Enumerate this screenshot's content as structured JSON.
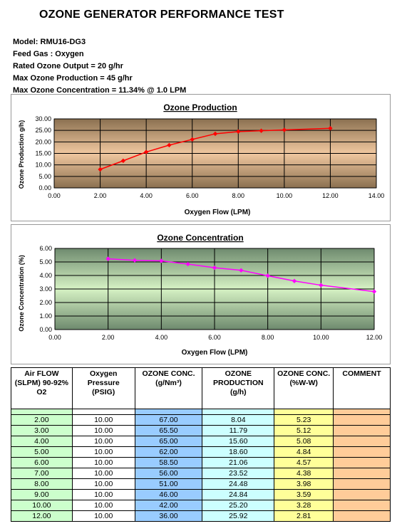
{
  "title": "OZONE GENERATOR PERFORMANCE TEST",
  "info": {
    "model": "Model: RMU16-DG3",
    "feed_gas": "Feed Gas :  Oxygen",
    "rated_output": "Rated Ozone Output = 20 g/hr",
    "max_production": "Max Ozone Production = 45 g/hr",
    "max_concentration": "Max Ozone Concentration = 11.34% @ 1.0 LPM"
  },
  "chart_data": [
    {
      "type": "line",
      "title": "Ozone Production",
      "xlabel": "Oxygen Flow (LPM)",
      "ylabel": "Ozone Production g/h)",
      "xlim": [
        0,
        14
      ],
      "ylim": [
        0,
        30
      ],
      "x_ticks": [
        "0.00",
        "2.00",
        "4.00",
        "6.00",
        "8.00",
        "10.00",
        "12.00",
        "14.00"
      ],
      "y_ticks": [
        "0.00",
        "5.00",
        "10.00",
        "15.00",
        "20.00",
        "25.00",
        "30.00"
      ],
      "grid": true,
      "series_color": "#ff0000",
      "x": [
        2,
        3,
        4,
        5,
        6,
        7,
        8,
        9,
        10,
        12
      ],
      "y": [
        8.04,
        11.79,
        15.6,
        18.6,
        21.06,
        23.52,
        24.48,
        24.84,
        25.2,
        25.92
      ]
    },
    {
      "type": "line",
      "title": "Ozone Concentration",
      "xlabel": "Oxygen Flow (LPM)",
      "ylabel": "Ozone Concentration (%)",
      "xlim": [
        0,
        12
      ],
      "ylim": [
        0,
        6
      ],
      "x_ticks": [
        "0.00",
        "2.00",
        "4.00",
        "6.00",
        "8.00",
        "10.00",
        "12.00"
      ],
      "y_ticks": [
        "0.00",
        "1.00",
        "2.00",
        "3.00",
        "4.00",
        "5.00",
        "6.00"
      ],
      "grid": true,
      "series_color": "#ff00ff",
      "x": [
        2,
        3,
        4,
        5,
        6,
        7,
        8,
        9,
        10,
        12
      ],
      "y": [
        5.23,
        5.12,
        5.08,
        4.84,
        4.57,
        4.38,
        3.98,
        3.59,
        3.28,
        2.81
      ]
    }
  ],
  "table": {
    "headers": [
      [
        "Air FLOW",
        "(SLPM) 90-92%",
        "O2"
      ],
      [
        "Oxygen",
        "Pressure",
        "(PSIG)"
      ],
      [
        "OZONE CONC.",
        "(g/Nm³)"
      ],
      [
        "OZONE",
        "PRODUCTION",
        "(g/h)"
      ],
      [
        "OZONE CONC.",
        "(%W-W)"
      ],
      [
        "COMMENT"
      ]
    ],
    "rows": [
      [
        "2.00",
        "10.00",
        "67.00",
        "8.04",
        "5.23",
        ""
      ],
      [
        "3.00",
        "10.00",
        "65.50",
        "11.79",
        "5.12",
        ""
      ],
      [
        "4.00",
        "10.00",
        "65.00",
        "15.60",
        "5.08",
        ""
      ],
      [
        "5.00",
        "10.00",
        "62.00",
        "18.60",
        "4.84",
        ""
      ],
      [
        "6.00",
        "10.00",
        "58.50",
        "21.06",
        "4.57",
        ""
      ],
      [
        "7.00",
        "10.00",
        "56.00",
        "23.52",
        "4.38",
        ""
      ],
      [
        "8.00",
        "10.00",
        "51.00",
        "24.48",
        "3.98",
        ""
      ],
      [
        "9.00",
        "10.00",
        "46.00",
        "24.84",
        "3.59",
        ""
      ],
      [
        "10.00",
        "10.00",
        "42.00",
        "25.20",
        "3.28",
        ""
      ],
      [
        "12.00",
        "10.00",
        "36.00",
        "25.92",
        "2.81",
        ""
      ]
    ]
  }
}
